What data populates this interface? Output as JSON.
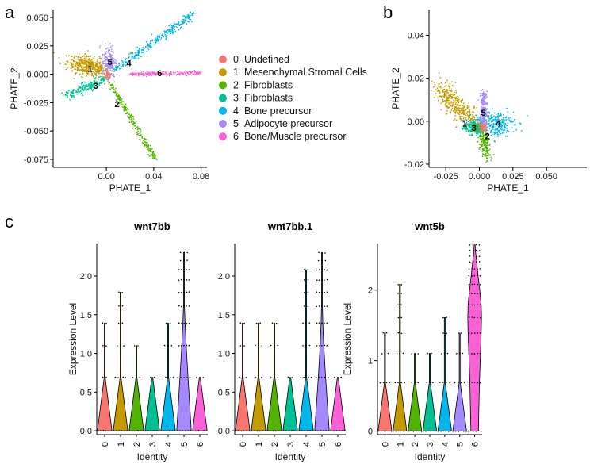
{
  "panel_labels": {
    "a": "a",
    "b": "b",
    "c": "c"
  },
  "legend": [
    {
      "code": "0",
      "name": "Undefined",
      "color": "#F8766D"
    },
    {
      "code": "1",
      "name": "Mesenchymal Stromal Cells",
      "color": "#C49A00"
    },
    {
      "code": "2",
      "name": "Fibroblasts",
      "color": "#53B400"
    },
    {
      "code": "3",
      "name": "Fibroblasts",
      "color": "#00C094"
    },
    {
      "code": "4",
      "name": "Bone precursor",
      "color": "#00B6EB"
    },
    {
      "code": "5",
      "name": "Adipocyte precursor",
      "color": "#A58AFF"
    },
    {
      "code": "6",
      "name": "Bone/Muscle precursor",
      "color": "#FB61D7"
    }
  ],
  "chart_data": [
    {
      "id": "a",
      "type": "scatter",
      "xlabel": "PHATE_1",
      "ylabel": "PHATE_2",
      "xlim": [
        -0.045,
        0.085
      ],
      "ylim": [
        -0.082,
        0.057
      ],
      "xticks": [
        0.0,
        0.04,
        0.08
      ],
      "xtick_labels": [
        "0.00",
        "0.04",
        "0.08"
      ],
      "yticks": [
        -0.075,
        -0.05,
        -0.025,
        0.0,
        0.025,
        0.05
      ],
      "ytick_labels": [
        "-0.075",
        "-0.050",
        "-0.025",
        "0.000",
        "0.025",
        "0.050"
      ],
      "cluster_labels": [
        {
          "label": "0",
          "x": 0.002,
          "y": -0.001,
          "color": "#F8766D"
        },
        {
          "label": "1",
          "x": -0.014,
          "y": 0.005,
          "color": "#000000"
        },
        {
          "label": "2",
          "x": 0.009,
          "y": -0.026,
          "color": "#000000"
        },
        {
          "label": "3",
          "x": -0.009,
          "y": -0.01,
          "color": "#000000"
        },
        {
          "label": "4",
          "x": 0.019,
          "y": 0.01,
          "color": "#000000"
        },
        {
          "label": "5",
          "x": 0.003,
          "y": 0.011,
          "color": "#000000"
        },
        {
          "label": "6",
          "x": 0.045,
          "y": 0.001,
          "color": "#000000"
        }
      ],
      "clusters": [
        {
          "code": "1",
          "shape": "blob",
          "cx": -0.015,
          "cy": 0.007,
          "sx": 0.009,
          "sy": 0.004,
          "rot": -0.25,
          "n": 420
        },
        {
          "code": "3",
          "shape": "line",
          "from": [
            -0.034,
            -0.019
          ],
          "to": [
            -0.002,
            -0.004
          ],
          "spread": 0.0022,
          "n": 200
        },
        {
          "code": "2",
          "shape": "line",
          "from": [
            0.003,
            -0.008
          ],
          "to": [
            0.041,
            -0.074
          ],
          "spread": 0.0012,
          "n": 240
        },
        {
          "code": "4",
          "shape": "line",
          "from": [
            0.007,
            0.004
          ],
          "to": [
            0.073,
            0.053
          ],
          "spread": 0.0018,
          "n": 260
        },
        {
          "code": "6",
          "shape": "line",
          "from": [
            0.02,
            0.0
          ],
          "to": [
            0.08,
            0.001
          ],
          "spread": 0.0009,
          "n": 220
        },
        {
          "code": "5",
          "shape": "blob",
          "cx": 0.002,
          "cy": 0.012,
          "sx": 0.003,
          "sy": 0.007,
          "rot": 0.0,
          "n": 160
        },
        {
          "code": "0",
          "shape": "blob",
          "cx": 0.001,
          "cy": -0.001,
          "sx": 0.0015,
          "sy": 0.002,
          "rot": 0.0,
          "n": 30
        }
      ]
    },
    {
      "id": "b",
      "type": "scatter",
      "xlabel": "PHATE_1",
      "ylabel": "PHATE_2",
      "xlim": [
        -0.0375,
        0.08
      ],
      "ylim": [
        -0.0215,
        0.052
      ],
      "xticks": [
        -0.025,
        0.0,
        0.025,
        0.05
      ],
      "xtick_labels": [
        "-0.025",
        "0.000",
        "0.025",
        "0.050"
      ],
      "yticks": [
        -0.02,
        0.0,
        0.02,
        0.04
      ],
      "ytick_labels": [
        "-0.02",
        "0.00",
        "0.02",
        "0.04"
      ],
      "cluster_labels": [
        {
          "label": "0",
          "x": 0.004,
          "y": -0.003,
          "color": "#F8766D"
        },
        {
          "label": "1",
          "x": -0.011,
          "y": -0.001,
          "color": "#000000"
        },
        {
          "label": "2",
          "x": 0.006,
          "y": -0.007,
          "color": "#000000"
        },
        {
          "label": "3",
          "x": -0.004,
          "y": -0.003,
          "color": "#000000"
        },
        {
          "label": "4",
          "x": 0.014,
          "y": -0.001,
          "color": "#000000"
        },
        {
          "label": "5",
          "x": 0.003,
          "y": 0.004,
          "color": "#000000"
        }
      ],
      "clusters": [
        {
          "code": "1",
          "shape": "line",
          "from": [
            -0.03,
            0.015
          ],
          "to": [
            -0.003,
            -0.001
          ],
          "spread": 0.0028,
          "n": 380
        },
        {
          "code": "3",
          "shape": "blob",
          "cx": -0.004,
          "cy": -0.003,
          "sx": 0.004,
          "sy": 0.0016,
          "rot": 0.0,
          "n": 200
        },
        {
          "code": "2",
          "shape": "line",
          "from": [
            0.0,
            -0.002
          ],
          "to": [
            0.007,
            -0.017
          ],
          "spread": 0.0018,
          "n": 190
        },
        {
          "code": "4",
          "shape": "blob",
          "cx": 0.011,
          "cy": -0.001,
          "sx": 0.0075,
          "sy": 0.003,
          "rot": 0.0,
          "n": 280
        },
        {
          "code": "5",
          "shape": "line",
          "from": [
            0.003,
            0.013
          ],
          "to": [
            0.003,
            -0.001
          ],
          "spread": 0.0014,
          "n": 170
        },
        {
          "code": "0",
          "shape": "blob",
          "cx": 0.003,
          "cy": -0.003,
          "sx": 0.0015,
          "sy": 0.0013,
          "rot": 0.0,
          "n": 40
        }
      ]
    },
    {
      "id": "c1",
      "type": "violin",
      "title": "wnt7bb",
      "xlabel": "Identity",
      "ylabel": "Expression Level",
      "categories": [
        "0",
        "1",
        "2",
        "3",
        "4",
        "5",
        "6"
      ],
      "ylim": [
        -0.05,
        2.42
      ],
      "yticks": [
        0.0,
        0.5,
        1.0,
        1.5,
        2.0
      ],
      "ytick_labels": [
        "0.0",
        "0.5",
        "1.0",
        "1.5",
        "2.0"
      ],
      "levels": [
        0.0,
        0.69,
        1.1,
        1.39,
        1.61,
        1.79,
        1.95,
        2.08,
        2.2,
        2.3
      ],
      "max_values": [
        1.39,
        1.79,
        1.1,
        0.69,
        1.39,
        2.3,
        0.69
      ],
      "density": [
        {
          "color": "#F8766D",
          "w": [
            1.0,
            0.002,
            0,
            0.002,
            0,
            0,
            0,
            0,
            0,
            0
          ]
        },
        {
          "color": "#C49A00",
          "w": [
            1.0,
            0.015,
            0.004,
            0.002,
            0.001,
            0.0005,
            0,
            0,
            0,
            0
          ]
        },
        {
          "color": "#53B400",
          "w": [
            1.0,
            0.005,
            0.002,
            0,
            0,
            0,
            0,
            0,
            0,
            0
          ]
        },
        {
          "color": "#00C094",
          "w": [
            1.0,
            0.002,
            0,
            0,
            0,
            0,
            0,
            0,
            0,
            0
          ]
        },
        {
          "color": "#00B6EB",
          "w": [
            1.0,
            0.02,
            0.006,
            0.002,
            0,
            0,
            0,
            0,
            0,
            0
          ]
        },
        {
          "color": "#A58AFF",
          "w": [
            1.0,
            0.55,
            0.3,
            0.15,
            0.06,
            0.04,
            0.02,
            0.015,
            0.01,
            0.005
          ]
        },
        {
          "color": "#FB61D7",
          "w": [
            1.0,
            0.003,
            0,
            0,
            0,
            0,
            0,
            0,
            0,
            0
          ]
        }
      ]
    },
    {
      "id": "c2",
      "type": "violin",
      "title": "wnt7bb.1",
      "xlabel": "Identity",
      "ylabel": "",
      "categories": [
        "0",
        "1",
        "2",
        "3",
        "4",
        "5",
        "6"
      ],
      "ylim": [
        -0.05,
        2.42
      ],
      "yticks": [
        0.0,
        0.5,
        1.0,
        1.5,
        2.0
      ],
      "ytick_labels": [
        "0.0",
        "0.5",
        "1.0",
        "1.5",
        "2.0"
      ],
      "levels": [
        0.0,
        0.69,
        1.1,
        1.39,
        1.61,
        1.79,
        1.95,
        2.08,
        2.2,
        2.3
      ],
      "max_values": [
        1.39,
        1.39,
        1.39,
        0.69,
        2.08,
        2.3,
        0.69
      ],
      "density": [
        {
          "color": "#F8766D",
          "w": [
            1.0,
            0.003,
            0,
            0.001,
            0,
            0,
            0,
            0,
            0,
            0
          ]
        },
        {
          "color": "#C49A00",
          "w": [
            1.0,
            0.01,
            0.004,
            0.002,
            0,
            0,
            0,
            0,
            0,
            0
          ]
        },
        {
          "color": "#53B400",
          "w": [
            1.0,
            0.006,
            0.003,
            0.001,
            0,
            0,
            0,
            0,
            0,
            0
          ]
        },
        {
          "color": "#00C094",
          "w": [
            1.0,
            0.002,
            0,
            0,
            0,
            0,
            0,
            0,
            0,
            0
          ]
        },
        {
          "color": "#00B6EB",
          "w": [
            1.0,
            0.03,
            0.01,
            0.005,
            0.002,
            0.001,
            0.001,
            0.0005,
            0,
            0
          ]
        },
        {
          "color": "#A58AFF",
          "w": [
            1.0,
            0.5,
            0.25,
            0.12,
            0.06,
            0.04,
            0.02,
            0.015,
            0.01,
            0.005
          ]
        },
        {
          "color": "#FB61D7",
          "w": [
            1.0,
            0.003,
            0,
            0,
            0,
            0,
            0,
            0,
            0,
            0
          ]
        }
      ]
    },
    {
      "id": "c3",
      "type": "violin",
      "title": "wnt5b",
      "xlabel": "Identity",
      "ylabel": "Expression Level",
      "categories": [
        "0",
        "1",
        "2",
        "3",
        "4",
        "5",
        "6"
      ],
      "ylim": [
        -0.05,
        2.66
      ],
      "yticks": [
        0,
        1,
        2
      ],
      "ytick_labels": [
        "0",
        "1",
        "2"
      ],
      "levels": [
        0.0,
        0.69,
        1.1,
        1.39,
        1.61,
        1.79,
        1.95,
        2.08,
        2.2,
        2.3,
        2.4,
        2.48,
        2.56,
        2.64
      ],
      "max_values": [
        1.39,
        2.08,
        1.1,
        1.1,
        1.61,
        1.39,
        2.64
      ],
      "density": [
        {
          "color": "#F8766D",
          "w": [
            1.0,
            0.02,
            0.005,
            0.001,
            0,
            0,
            0,
            0,
            0,
            0,
            0,
            0,
            0,
            0
          ]
        },
        {
          "color": "#C49A00",
          "w": [
            1.0,
            0.02,
            0.006,
            0.002,
            0.001,
            0.001,
            0.0005,
            0.0005,
            0,
            0,
            0,
            0,
            0,
            0
          ]
        },
        {
          "color": "#53B400",
          "w": [
            1.0,
            0.01,
            0.003,
            0,
            0,
            0,
            0,
            0,
            0,
            0,
            0,
            0,
            0,
            0
          ]
        },
        {
          "color": "#00C094",
          "w": [
            1.0,
            0.01,
            0.002,
            0,
            0,
            0,
            0,
            0,
            0,
            0,
            0,
            0,
            0,
            0
          ]
        },
        {
          "color": "#00B6EB",
          "w": [
            1.0,
            0.02,
            0.005,
            0.002,
            0.001,
            0,
            0,
            0,
            0,
            0,
            0,
            0,
            0,
            0
          ]
        },
        {
          "color": "#A58AFF",
          "w": [
            1.0,
            0.02,
            0.004,
            0.001,
            0,
            0,
            0,
            0,
            0,
            0,
            0,
            0,
            0,
            0
          ]
        },
        {
          "color": "#FB61D7",
          "w": [
            0.55,
            0.7,
            0.85,
            0.95,
            1.0,
            0.95,
            0.8,
            0.65,
            0.5,
            0.4,
            0.3,
            0.2,
            0.12,
            0.05
          ]
        }
      ]
    }
  ]
}
